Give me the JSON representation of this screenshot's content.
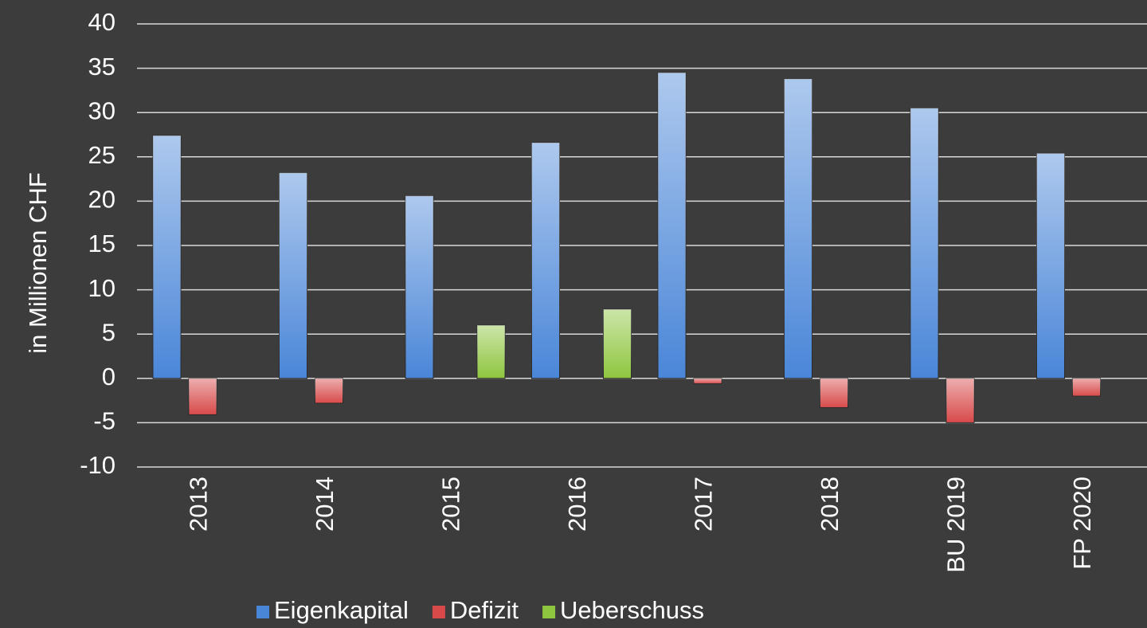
{
  "chart_data": {
    "type": "bar",
    "y_label": "in Millionen CHF",
    "categories": [
      "2013",
      "2014",
      "2015",
      "2016",
      "2017",
      "2018",
      "BU 2019",
      "FP 2020"
    ],
    "series": [
      {
        "name": "Eigenkapital",
        "color": "#4a86d8",
        "values": [
          27.4,
          23.2,
          20.6,
          26.6,
          34.5,
          33.8,
          30.5,
          25.4
        ]
      },
      {
        "name": "Defizit",
        "color": "#d84a4a",
        "values": [
          -4.1,
          -2.8,
          null,
          null,
          -0.6,
          -3.3,
          -5.0,
          -2.0
        ]
      },
      {
        "name": "Ueberschuss",
        "color": "#8ec63f",
        "values": [
          null,
          null,
          6.0,
          7.8,
          null,
          null,
          null,
          null
        ]
      }
    ],
    "ylim": [
      -10,
      40
    ],
    "yticks": [
      -10,
      -5,
      0,
      5,
      10,
      15,
      20,
      25,
      30,
      35,
      40
    ],
    "grid": true
  }
}
